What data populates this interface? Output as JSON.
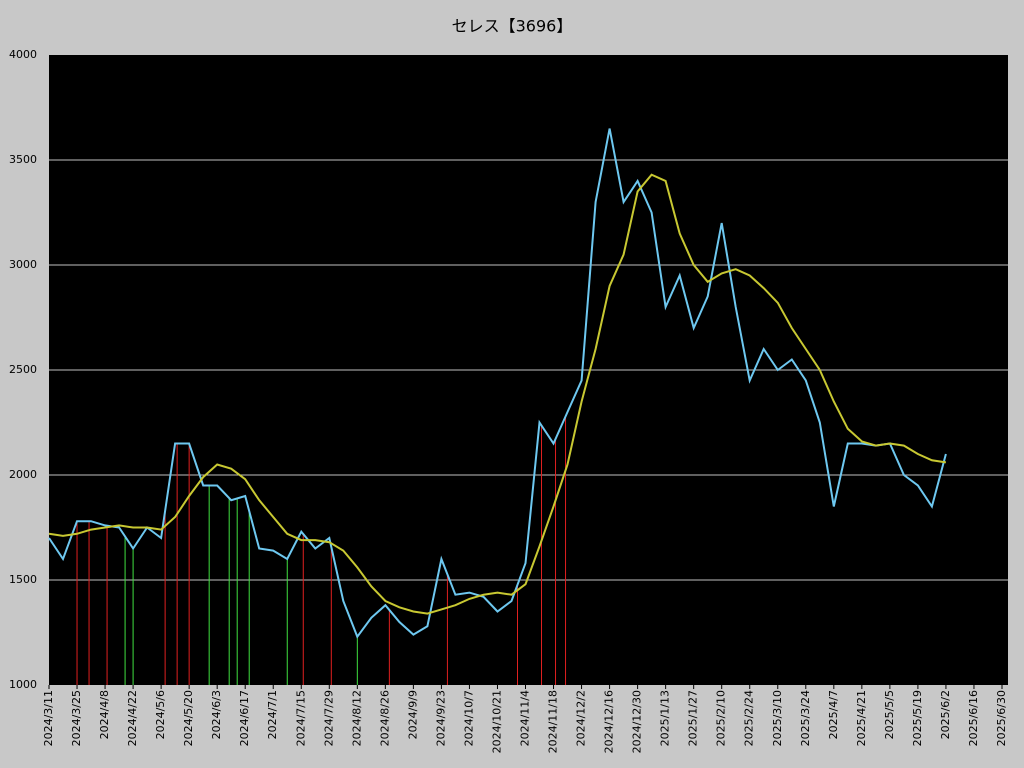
{
  "chart_data": {
    "type": "line",
    "title": "セレス【3696】",
    "x": [
      "2024/3/11",
      "2024/3/18",
      "2024/3/25",
      "2024/4/1",
      "2024/4/8",
      "2024/4/15",
      "2024/4/22",
      "2024/4/29",
      "2024/5/6",
      "2024/5/13",
      "2024/5/20",
      "2024/5/27",
      "2024/6/3",
      "2024/6/10",
      "2024/6/17",
      "2024/6/24",
      "2024/7/1",
      "2024/7/8",
      "2024/7/15",
      "2024/7/22",
      "2024/7/29",
      "2024/8/5",
      "2024/8/12",
      "2024/8/19",
      "2024/8/26",
      "2024/9/2",
      "2024/9/9",
      "2024/9/16",
      "2024/9/23",
      "2024/9/30",
      "2024/10/7",
      "2024/10/14",
      "2024/10/21",
      "2024/10/28",
      "2024/11/4",
      "2024/11/11",
      "2024/11/18",
      "2024/11/25",
      "2024/12/2",
      "2024/12/9",
      "2024/12/16",
      "2024/12/23",
      "2024/12/30",
      "2025/1/6",
      "2025/1/13",
      "2025/1/20",
      "2025/1/27",
      "2025/2/3",
      "2025/2/10",
      "2025/2/17",
      "2025/2/24",
      "2025/3/3",
      "2025/3/10",
      "2025/3/17",
      "2025/3/24",
      "2025/3/31",
      "2025/4/7",
      "2025/4/14",
      "2025/4/21",
      "2025/4/28",
      "2025/5/5",
      "2025/5/12",
      "2025/5/19",
      "2025/5/26",
      "2025/6/2"
    ],
    "series": [
      {
        "color": "#6ec8f0",
        "values": [
          1700,
          1600,
          1780,
          1780,
          1760,
          1750,
          1650,
          1750,
          1700,
          2150,
          2150,
          1950,
          1950,
          1880,
          1900,
          1650,
          1640,
          1600,
          1730,
          1650,
          1700,
          1400,
          1230,
          1320,
          1380,
          1300,
          1240,
          1280,
          1600,
          1430,
          1440,
          1420,
          1350,
          1400,
          1580,
          2250,
          2150,
          2300,
          2450,
          3300,
          3650,
          3300,
          3400,
          3250,
          2800,
          2950,
          2700,
          2850,
          3200,
          2800,
          2450,
          2600,
          2500,
          2550,
          2450,
          2250,
          1850,
          2150,
          2150,
          2140,
          2150,
          2000,
          1950,
          1850,
          2100
        ]
      },
      {
        "color": "#c8c832",
        "values": [
          1720,
          1710,
          1720,
          1740,
          1750,
          1760,
          1750,
          1750,
          1740,
          1800,
          1900,
          1990,
          2050,
          2030,
          1980,
          1880,
          1800,
          1720,
          1690,
          1690,
          1680,
          1640,
          1560,
          1470,
          1400,
          1370,
          1350,
          1340,
          1360,
          1380,
          1410,
          1430,
          1440,
          1430,
          1480,
          1660,
          1850,
          2050,
          2350,
          2600,
          2900,
          3050,
          3350,
          3430,
          3400,
          3150,
          3000,
          2920,
          2960,
          2980,
          2950,
          2890,
          2820,
          2700,
          2600,
          2500,
          2350,
          2220,
          2160,
          2140,
          2150,
          2140,
          2100,
          2070,
          2060
        ]
      }
    ],
    "buy_signals": {
      "color": "#e02020",
      "x": [
        "2024/3/25",
        "2024/3/31",
        "2024/4/9",
        "2024/5/8",
        "2024/5/14",
        "2024/5/20",
        "2024/7/16",
        "2024/7/30",
        "2024/8/28",
        "2024/9/26",
        "2024/10/31",
        "2024/11/12",
        "2024/11/19",
        "2024/11/24"
      ]
    },
    "sell_signals": {
      "color": "#40e040",
      "x": [
        "2024/4/18",
        "2024/4/22",
        "2024/5/30",
        "2024/6/9",
        "2024/6/13",
        "2024/6/19",
        "2024/7/8",
        "2024/8/12"
      ]
    },
    "xlim": [
      "2024/3/11",
      "2025/7/3"
    ],
    "xticks": [
      "2024/3/11",
      "2024/3/25",
      "2024/4/8",
      "2024/4/22",
      "2024/5/6",
      "2024/5/20",
      "2024/6/3",
      "2024/6/17",
      "2024/7/1",
      "2024/7/15",
      "2024/7/29",
      "2024/8/12",
      "2024/8/26",
      "2024/9/9",
      "2024/9/23",
      "2024/10/7",
      "2024/10/21",
      "2024/11/4",
      "2024/11/18",
      "2024/12/2",
      "2024/12/16",
      "2024/12/30",
      "2025/1/13",
      "2025/1/27",
      "2025/2/10",
      "2025/2/24",
      "2025/3/10",
      "2025/3/24",
      "2025/4/7",
      "2025/4/21",
      "2025/5/5",
      "2025/5/19",
      "2025/6/2",
      "2025/6/16",
      "2025/6/30"
    ],
    "ylim": [
      1000,
      4000
    ],
    "yticks": [
      1000,
      1500,
      2000,
      2500,
      3000,
      3500,
      4000
    ],
    "grid": true
  }
}
